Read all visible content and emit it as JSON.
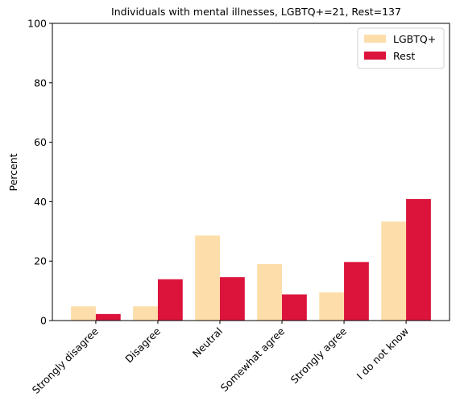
{
  "chart_data": {
    "type": "bar",
    "title": "Individuals with mental illnesses, LGBTQ+=21, Rest=137",
    "xlabel": "",
    "ylabel": "Percent",
    "ylim": [
      0,
      100
    ],
    "yticks": [
      0,
      20,
      40,
      60,
      80,
      100
    ],
    "categories": [
      "Strongly disagree",
      "Disagree",
      "Neutral",
      "Somewhat agree",
      "Strongly agree",
      "I do not know"
    ],
    "series": [
      {
        "name": "LGBTQ+",
        "color": "#fddeaa",
        "values": [
          4.8,
          4.8,
          28.6,
          19.0,
          9.5,
          33.3
        ]
      },
      {
        "name": "Rest",
        "color": "#dc143c",
        "values": [
          2.2,
          13.9,
          14.6,
          8.8,
          19.7,
          40.9
        ]
      }
    ],
    "legend": {
      "placement": "top-right"
    },
    "grid": false
  }
}
